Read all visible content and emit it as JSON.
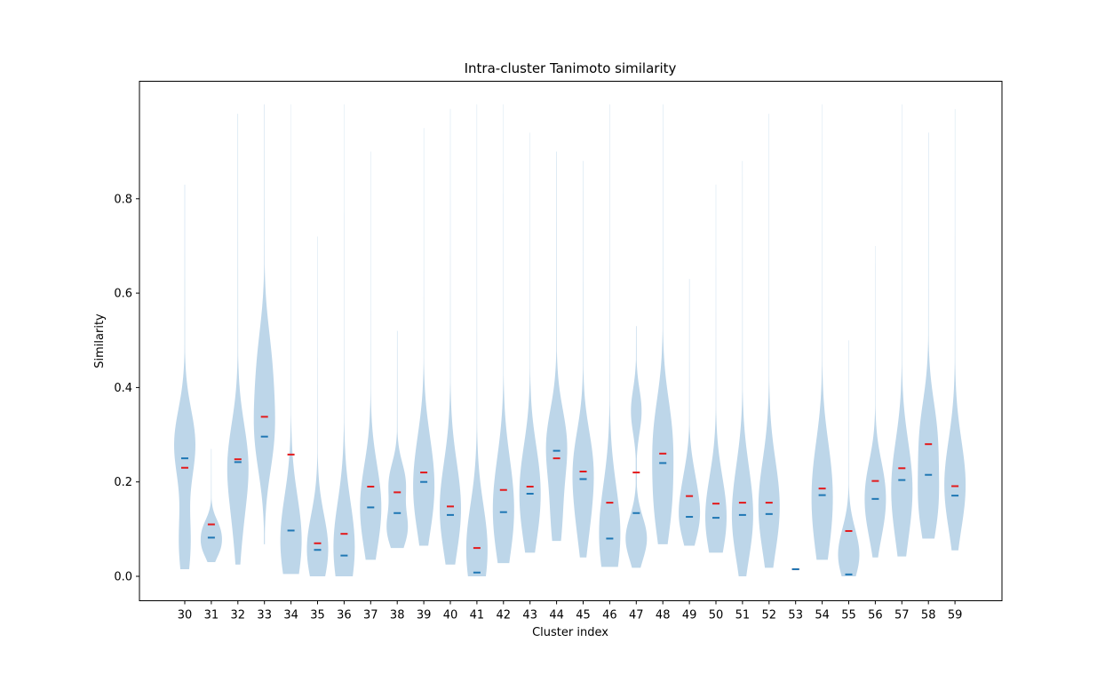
{
  "chart_data": {
    "type": "violin",
    "title": "Intra-cluster Tanimoto similarity",
    "xlabel": "Cluster index",
    "ylabel": "Similarity",
    "ylim": [
      -0.05,
      1.05
    ],
    "yticks": [
      0.0,
      0.2,
      0.4,
      0.6,
      0.8
    ],
    "grid": false,
    "colors": {
      "body": "#b9d4e8",
      "mean": "#e31a1c",
      "median": "#1f77b4",
      "axes": "#000000"
    },
    "categories": [
      "30",
      "31",
      "32",
      "33",
      "34",
      "35",
      "36",
      "37",
      "38",
      "39",
      "40",
      "41",
      "42",
      "43",
      "44",
      "45",
      "46",
      "47",
      "48",
      "49",
      "50",
      "51",
      "52",
      "53",
      "54",
      "55",
      "56",
      "57",
      "58",
      "59"
    ],
    "violins": [
      {
        "cluster": "30",
        "min": 0.015,
        "max": 0.83,
        "mean": 0.23,
        "median": 0.25,
        "peaks": [
          [
            0.07,
            0.55
          ],
          [
            0.28,
            1.0
          ]
        ]
      },
      {
        "cluster": "31",
        "min": 0.03,
        "max": 0.27,
        "mean": 0.11,
        "median": 0.082,
        "peaks": [
          [
            0.06,
            0.85
          ],
          [
            0.1,
            0.8
          ]
        ]
      },
      {
        "cluster": "32",
        "min": 0.025,
        "max": 0.98,
        "mean": 0.248,
        "median": 0.242,
        "peaks": [
          [
            0.1,
            0.3
          ],
          [
            0.24,
            1.0
          ]
        ]
      },
      {
        "cluster": "33",
        "min": 0.068,
        "max": 1.0,
        "mean": 0.338,
        "median": 0.296,
        "peaks": [
          [
            0.3,
            1.0
          ],
          [
            0.45,
            0.7
          ]
        ]
      },
      {
        "cluster": "34",
        "min": 0.005,
        "max": 1.0,
        "mean": 0.258,
        "median": 0.097,
        "peaks": [
          [
            0.05,
            0.9
          ],
          [
            0.1,
            1.0
          ]
        ]
      },
      {
        "cluster": "35",
        "min": 0.0,
        "max": 0.72,
        "mean": 0.07,
        "median": 0.056,
        "peaks": [
          [
            0.04,
            1.0
          ],
          [
            0.1,
            0.5
          ]
        ]
      },
      {
        "cluster": "36",
        "min": 0.0,
        "max": 1.0,
        "mean": 0.09,
        "median": 0.044,
        "peaks": [
          [
            0.04,
            1.0
          ],
          [
            0.1,
            0.6
          ]
        ]
      },
      {
        "cluster": "37",
        "min": 0.035,
        "max": 0.9,
        "mean": 0.19,
        "median": 0.146,
        "peaks": [
          [
            0.1,
            0.8
          ],
          [
            0.18,
            1.0
          ]
        ]
      },
      {
        "cluster": "38",
        "min": 0.06,
        "max": 0.52,
        "mean": 0.178,
        "median": 0.134,
        "peaks": [
          [
            0.1,
            1.0
          ],
          [
            0.2,
            0.8
          ]
        ]
      },
      {
        "cluster": "39",
        "min": 0.065,
        "max": 0.95,
        "mean": 0.22,
        "median": 0.2,
        "peaks": [
          [
            0.15,
            1.0
          ],
          [
            0.25,
            0.8
          ]
        ]
      },
      {
        "cluster": "40",
        "min": 0.025,
        "max": 0.99,
        "mean": 0.148,
        "median": 0.13,
        "peaks": [
          [
            0.12,
            1.0
          ],
          [
            0.2,
            0.5
          ]
        ]
      },
      {
        "cluster": "41",
        "min": 0.0,
        "max": 1.0,
        "mean": 0.06,
        "median": 0.008,
        "peaks": [
          [
            0.02,
            0.6
          ],
          [
            0.08,
            0.9
          ]
        ]
      },
      {
        "cluster": "42",
        "min": 0.028,
        "max": 1.0,
        "mean": 0.183,
        "median": 0.136,
        "peaks": [
          [
            0.1,
            1.0
          ],
          [
            0.2,
            0.8
          ]
        ]
      },
      {
        "cluster": "43",
        "min": 0.05,
        "max": 0.94,
        "mean": 0.19,
        "median": 0.175,
        "peaks": [
          [
            0.12,
            0.9
          ],
          [
            0.22,
            1.0
          ]
        ]
      },
      {
        "cluster": "44",
        "min": 0.075,
        "max": 0.9,
        "mean": 0.25,
        "median": 0.266,
        "peaks": [
          [
            0.12,
            0.5
          ],
          [
            0.28,
            1.0
          ]
        ]
      },
      {
        "cluster": "45",
        "min": 0.04,
        "max": 0.88,
        "mean": 0.222,
        "median": 0.206,
        "peaks": [
          [
            0.12,
            0.6
          ],
          [
            0.24,
            1.0
          ]
        ]
      },
      {
        "cluster": "46",
        "min": 0.02,
        "max": 1.0,
        "mean": 0.156,
        "median": 0.08,
        "peaks": [
          [
            0.06,
            1.0
          ],
          [
            0.15,
            0.6
          ]
        ]
      },
      {
        "cluster": "47",
        "min": 0.018,
        "max": 0.53,
        "mean": 0.22,
        "median": 0.134,
        "peaks": [
          [
            0.08,
            1.0
          ],
          [
            0.35,
            0.5
          ]
        ]
      },
      {
        "cluster": "48",
        "min": 0.068,
        "max": 1.0,
        "mean": 0.26,
        "median": 0.24,
        "peaks": [
          [
            0.15,
            0.9
          ],
          [
            0.3,
            1.0
          ]
        ]
      },
      {
        "cluster": "49",
        "min": 0.065,
        "max": 0.63,
        "mean": 0.17,
        "median": 0.126,
        "peaks": [
          [
            0.12,
            1.0
          ],
          [
            0.2,
            0.5
          ]
        ]
      },
      {
        "cluster": "50",
        "min": 0.05,
        "max": 0.83,
        "mean": 0.154,
        "median": 0.124,
        "peaks": [
          [
            0.1,
            1.0
          ],
          [
            0.18,
            0.6
          ]
        ]
      },
      {
        "cluster": "51",
        "min": 0.0,
        "max": 0.88,
        "mean": 0.156,
        "median": 0.13,
        "peaks": [
          [
            0.1,
            1.0
          ],
          [
            0.2,
            0.6
          ]
        ]
      },
      {
        "cluster": "52",
        "min": 0.018,
        "max": 0.98,
        "mean": 0.156,
        "median": 0.132,
        "peaks": [
          [
            0.12,
            1.0
          ],
          [
            0.2,
            0.6
          ]
        ]
      },
      {
        "cluster": "53",
        "min": 0.015,
        "max": 0.015,
        "mean": 0.015,
        "median": 0.015,
        "peaks": []
      },
      {
        "cluster": "54",
        "min": 0.035,
        "max": 1.0,
        "mean": 0.186,
        "median": 0.172,
        "peaks": [
          [
            0.1,
            0.9
          ],
          [
            0.22,
            1.0
          ]
        ]
      },
      {
        "cluster": "55",
        "min": 0.0,
        "max": 0.5,
        "mean": 0.096,
        "median": 0.004,
        "peaks": [
          [
            0.03,
            1.0
          ],
          [
            0.08,
            0.6
          ]
        ]
      },
      {
        "cluster": "56",
        "min": 0.04,
        "max": 0.7,
        "mean": 0.202,
        "median": 0.164,
        "peaks": [
          [
            0.12,
            0.9
          ],
          [
            0.2,
            1.0
          ]
        ]
      },
      {
        "cluster": "57",
        "min": 0.042,
        "max": 1.0,
        "mean": 0.229,
        "median": 0.204,
        "peaks": [
          [
            0.12,
            0.7
          ],
          [
            0.22,
            1.0
          ]
        ]
      },
      {
        "cluster": "58",
        "min": 0.08,
        "max": 0.94,
        "mean": 0.28,
        "median": 0.215,
        "peaks": [
          [
            0.15,
            1.0
          ],
          [
            0.3,
            0.9
          ]
        ]
      },
      {
        "cluster": "59",
        "min": 0.055,
        "max": 0.99,
        "mean": 0.191,
        "median": 0.171,
        "peaks": [
          [
            0.17,
            1.0
          ],
          [
            0.25,
            0.5
          ]
        ]
      }
    ]
  }
}
